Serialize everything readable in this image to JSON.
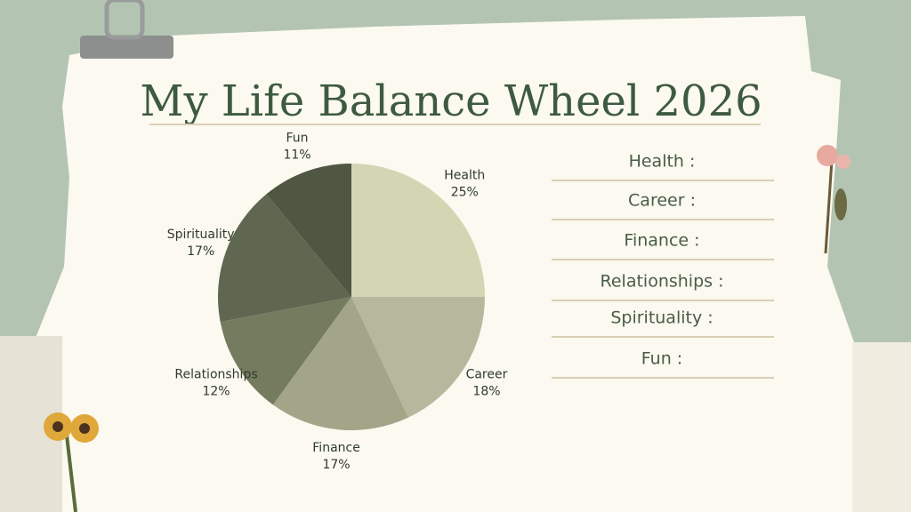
{
  "chart_data": {
    "type": "pie",
    "title": "My Life Balance Wheel 2026",
    "categories": [
      "Health",
      "Career",
      "Finance",
      "Relationships",
      "Spirituality",
      "Fun"
    ],
    "values": [
      25,
      18,
      17,
      12,
      17,
      11
    ],
    "value_labels": [
      "25%",
      "18%",
      "17%",
      "12%",
      "17%",
      "11%"
    ],
    "colors": [
      "#d4d6b3",
      "#b6b89d",
      "#a2a588",
      "#747b5f",
      "#5f6751",
      "#4f5641"
    ]
  },
  "worksheet": {
    "labels": [
      "Health :",
      "Career :",
      "Finance :",
      "Relationships :",
      "Spirituality :",
      "Fun :"
    ]
  }
}
